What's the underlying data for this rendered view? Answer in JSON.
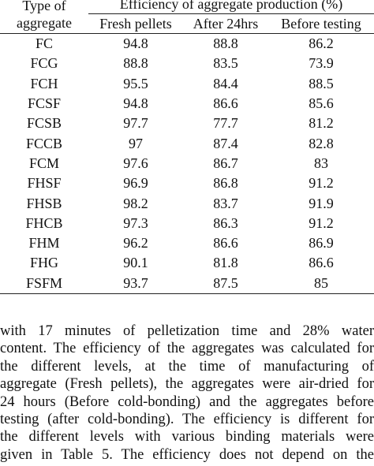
{
  "table": {
    "header": {
      "type_line1": "Type of",
      "type_line2": "aggregate",
      "group": "Efficiency of aggregate production (%)",
      "columns": [
        "Fresh pellets",
        "After 24hrs",
        "Before testing"
      ]
    },
    "rows": [
      {
        "type": "FC",
        "fresh": "94.8",
        "after": "88.8",
        "before": "86.2"
      },
      {
        "type": "FCG",
        "fresh": "88.8",
        "after": "83.5",
        "before": "73.9"
      },
      {
        "type": "FCH",
        "fresh": "95.5",
        "after": "84.4",
        "before": "88.5"
      },
      {
        "type": "FCSF",
        "fresh": "94.8",
        "after": "86.6",
        "before": "85.6"
      },
      {
        "type": "FCSB",
        "fresh": "97.7",
        "after": "77.7",
        "before": "81.2"
      },
      {
        "type": "FCCB",
        "fresh": "97",
        "after": "87.4",
        "before": "82.8"
      },
      {
        "type": "FCM",
        "fresh": "97.6",
        "after": "86.7",
        "before": "83"
      },
      {
        "type": "FHSF",
        "fresh": "96.9",
        "after": "86.8",
        "before": "91.2"
      },
      {
        "type": "FHSB",
        "fresh": "98.2",
        "after": "83.7",
        "before": "91.9"
      },
      {
        "type": "FHCB",
        "fresh": "97.3",
        "after": "86.3",
        "before": "91.2"
      },
      {
        "type": "FHM",
        "fresh": "96.2",
        "after": "86.6",
        "before": "86.9"
      },
      {
        "type": "FHG",
        "fresh": "90.1",
        "after": "81.8",
        "before": "86.6"
      },
      {
        "type": "FSFM",
        "fresh": "93.7",
        "after": "87.5",
        "before": "85"
      }
    ]
  },
  "paragraph": {
    "lines": [
      "with 17 minutes of pelletization time and 28% water",
      "content. The efficiency of the aggregates was calculated for",
      "the different levels, at the time of manufacturing of",
      "aggregate (Fresh pellets), the aggregates were air-dried for",
      "24 hours (Before cold-bonding) and the aggregates before",
      "testing (after cold-bonding). The efficiency is different for",
      "the different levels with various binding materials were",
      "given in Table 5. The efficiency does not depend on the"
    ]
  }
}
